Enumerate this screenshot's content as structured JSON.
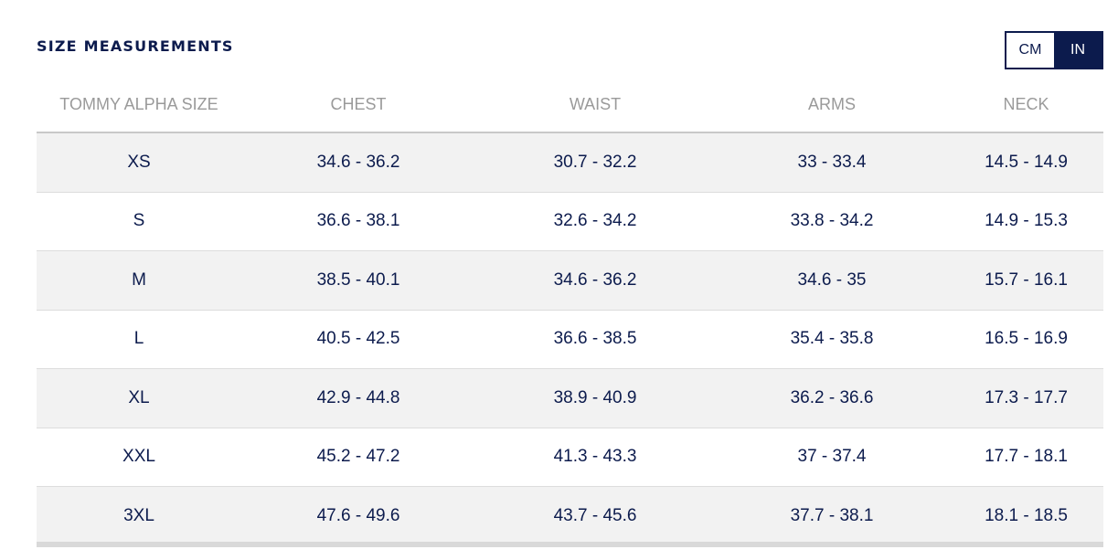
{
  "title": "SIZE MEASUREMENTS",
  "units": {
    "cm_label": "CM",
    "in_label": "IN",
    "selected": "IN"
  },
  "colors": {
    "navy": "#0c1b4d",
    "header_text": "#9a9a9a",
    "row_shade": "#f2f2f2"
  },
  "table": {
    "headers": [
      "TOMMY ALPHA SIZE",
      "CHEST",
      "WAIST",
      "ARMS",
      "NECK"
    ],
    "rows": [
      [
        "XS",
        "34.6 - 36.2",
        "30.7 - 32.2",
        "33 - 33.4",
        "14.5 - 14.9"
      ],
      [
        "S",
        "36.6 - 38.1",
        "32.6 - 34.2",
        "33.8 - 34.2",
        "14.9 - 15.3"
      ],
      [
        "M",
        "38.5 - 40.1",
        "34.6 - 36.2",
        "34.6 - 35",
        "15.7 - 16.1"
      ],
      [
        "L",
        "40.5 - 42.5",
        "36.6 - 38.5",
        "35.4 - 35.8",
        "16.5 - 16.9"
      ],
      [
        "XL",
        "42.9 - 44.8",
        "38.9 - 40.9",
        "36.2 - 36.6",
        "17.3 - 17.7"
      ],
      [
        "XXL",
        "45.2 - 47.2",
        "41.3 - 43.3",
        "37 - 37.4",
        "17.7 - 18.1"
      ],
      [
        "3XL",
        "47.6 - 49.6",
        "43.7 - 45.6",
        "37.7 - 38.1",
        "18.1 - 18.5"
      ]
    ]
  }
}
